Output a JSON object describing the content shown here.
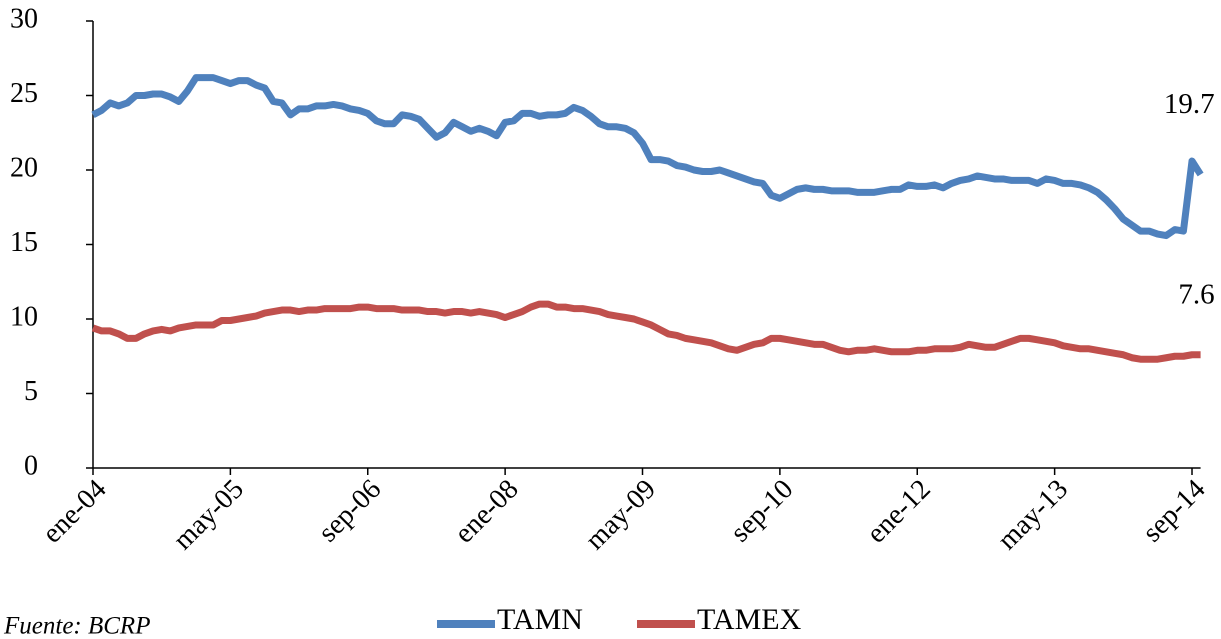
{
  "chart_data": {
    "type": "line",
    "categories": [
      "ene-04",
      null,
      null,
      null,
      null,
      null,
      null,
      null,
      null,
      null,
      null,
      null,
      null,
      null,
      null,
      null,
      "may-05",
      null,
      null,
      null,
      null,
      null,
      null,
      null,
      null,
      null,
      null,
      null,
      null,
      null,
      null,
      null,
      "sep-06",
      null,
      null,
      null,
      null,
      null,
      null,
      null,
      null,
      null,
      null,
      null,
      null,
      null,
      null,
      null,
      "ene-08",
      null,
      null,
      null,
      null,
      null,
      null,
      null,
      null,
      null,
      null,
      null,
      null,
      null,
      null,
      null,
      "may-09",
      null,
      null,
      null,
      null,
      null,
      null,
      null,
      null,
      null,
      null,
      null,
      null,
      null,
      null,
      null,
      "sep-10",
      null,
      null,
      null,
      null,
      null,
      null,
      null,
      null,
      null,
      null,
      null,
      null,
      null,
      null,
      null,
      "ene-12",
      null,
      null,
      null,
      null,
      null,
      null,
      null,
      null,
      null,
      null,
      null,
      null,
      null,
      null,
      null,
      "may-13",
      null,
      null,
      null,
      null,
      null,
      null,
      null,
      null,
      null,
      null,
      null,
      null,
      null,
      null,
      null,
      "sep-14",
      null
    ],
    "series": [
      {
        "name": "TAMN",
        "color": "#4f81bd",
        "values": [
          23.7,
          24.0,
          24.5,
          24.3,
          24.5,
          25.0,
          25.0,
          25.1,
          25.1,
          24.9,
          24.6,
          25.3,
          26.2,
          26.2,
          26.2,
          26.0,
          25.8,
          26.0,
          26.0,
          25.7,
          25.5,
          24.6,
          24.5,
          23.7,
          24.1,
          24.1,
          24.3,
          24.3,
          24.4,
          24.3,
          24.1,
          24.0,
          23.8,
          23.3,
          23.1,
          23.1,
          23.7,
          23.6,
          23.4,
          22.8,
          22.2,
          22.5,
          23.2,
          22.9,
          22.6,
          22.8,
          22.6,
          22.3,
          23.2,
          23.3,
          23.8,
          23.8,
          23.6,
          23.7,
          23.7,
          23.8,
          24.2,
          24.0,
          23.6,
          23.1,
          22.9,
          22.9,
          22.8,
          22.5,
          21.8,
          20.7,
          20.7,
          20.6,
          20.3,
          20.2,
          20.0,
          19.9,
          19.9,
          20.0,
          19.8,
          19.6,
          19.4,
          19.2,
          19.1,
          18.3,
          18.1,
          18.4,
          18.7,
          18.8,
          18.7,
          18.7,
          18.6,
          18.6,
          18.6,
          18.5,
          18.5,
          18.5,
          18.6,
          18.7,
          18.7,
          19.0,
          18.9,
          18.9,
          19.0,
          18.8,
          19.1,
          19.3,
          19.4,
          19.6,
          19.5,
          19.4,
          19.4,
          19.3,
          19.3,
          19.3,
          19.1,
          19.4,
          19.3,
          19.1,
          19.1,
          19.0,
          18.8,
          18.5,
          18.0,
          17.4,
          16.7,
          16.3,
          15.9,
          15.9,
          15.7,
          15.6,
          16.0,
          15.9,
          20.6,
          19.7
        ]
      },
      {
        "name": "TAMEX",
        "color": "#c0504d",
        "values": [
          9.4,
          9.2,
          9.2,
          9.0,
          8.7,
          8.7,
          9.0,
          9.2,
          9.3,
          9.2,
          9.4,
          9.5,
          9.6,
          9.6,
          9.6,
          9.9,
          9.9,
          10.0,
          10.1,
          10.2,
          10.4,
          10.5,
          10.6,
          10.6,
          10.5,
          10.6,
          10.6,
          10.7,
          10.7,
          10.7,
          10.7,
          10.8,
          10.8,
          10.7,
          10.7,
          10.7,
          10.6,
          10.6,
          10.6,
          10.5,
          10.5,
          10.4,
          10.5,
          10.5,
          10.4,
          10.5,
          10.4,
          10.3,
          10.1,
          10.3,
          10.5,
          10.8,
          11.0,
          11.0,
          10.8,
          10.8,
          10.7,
          10.7,
          10.6,
          10.5,
          10.3,
          10.2,
          10.1,
          10.0,
          9.8,
          9.6,
          9.3,
          9.0,
          8.9,
          8.7,
          8.6,
          8.5,
          8.4,
          8.2,
          8.0,
          7.9,
          8.1,
          8.3,
          8.4,
          8.7,
          8.7,
          8.6,
          8.5,
          8.4,
          8.3,
          8.3,
          8.1,
          7.9,
          7.8,
          7.9,
          7.9,
          8.0,
          7.9,
          7.8,
          7.8,
          7.8,
          7.9,
          7.9,
          8.0,
          8.0,
          8.0,
          8.1,
          8.3,
          8.2,
          8.1,
          8.1,
          8.3,
          8.5,
          8.7,
          8.7,
          8.6,
          8.5,
          8.4,
          8.2,
          8.1,
          8.0,
          8.0,
          7.9,
          7.8,
          7.7,
          7.6,
          7.4,
          7.3,
          7.3,
          7.3,
          7.4,
          7.5,
          7.5,
          7.6,
          7.6
        ]
      }
    ],
    "annotations": [
      "19.7",
      "7.6"
    ],
    "ylim": [
      0,
      30
    ],
    "yticks": [
      0,
      5,
      10,
      15,
      20,
      25,
      30
    ],
    "grid": false,
    "legend": "bottom",
    "source": "Fuente: BCRP"
  }
}
